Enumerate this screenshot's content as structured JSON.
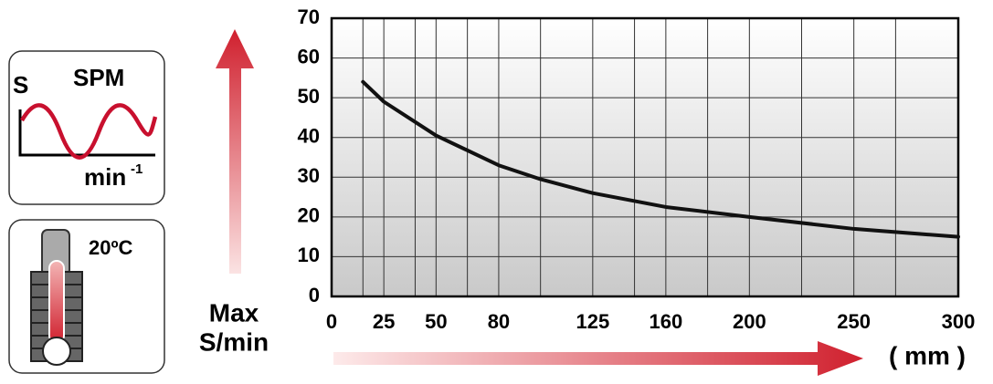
{
  "chart_data": {
    "type": "line",
    "ylabel": [
      "Max",
      "S/min"
    ],
    "xlabel": "( mm )",
    "x": [
      15,
      25,
      50,
      80,
      100,
      125,
      160,
      200,
      250,
      300
    ],
    "series": [
      {
        "color": "#111111",
        "values": [
          54,
          49,
          40.5,
          33,
          29.5,
          26,
          22.5,
          20,
          17,
          15
        ]
      }
    ],
    "xlim": [
      0,
      300
    ],
    "xticks": [
      0,
      25,
      50,
      80,
      125,
      160,
      200,
      250,
      300
    ],
    "xgrid": [
      15,
      40,
      65,
      100,
      145,
      180,
      225,
      270
    ],
    "ylim": [
      0,
      70
    ],
    "yticks": [
      0,
      10,
      20,
      30,
      40,
      50,
      60,
      70
    ],
    "grid": true,
    "icons": {
      "stroke": {
        "axis": "S",
        "title": "SPM",
        "unit": "min",
        "unit_exp": "-1"
      },
      "temperature": "20ºC"
    }
  }
}
